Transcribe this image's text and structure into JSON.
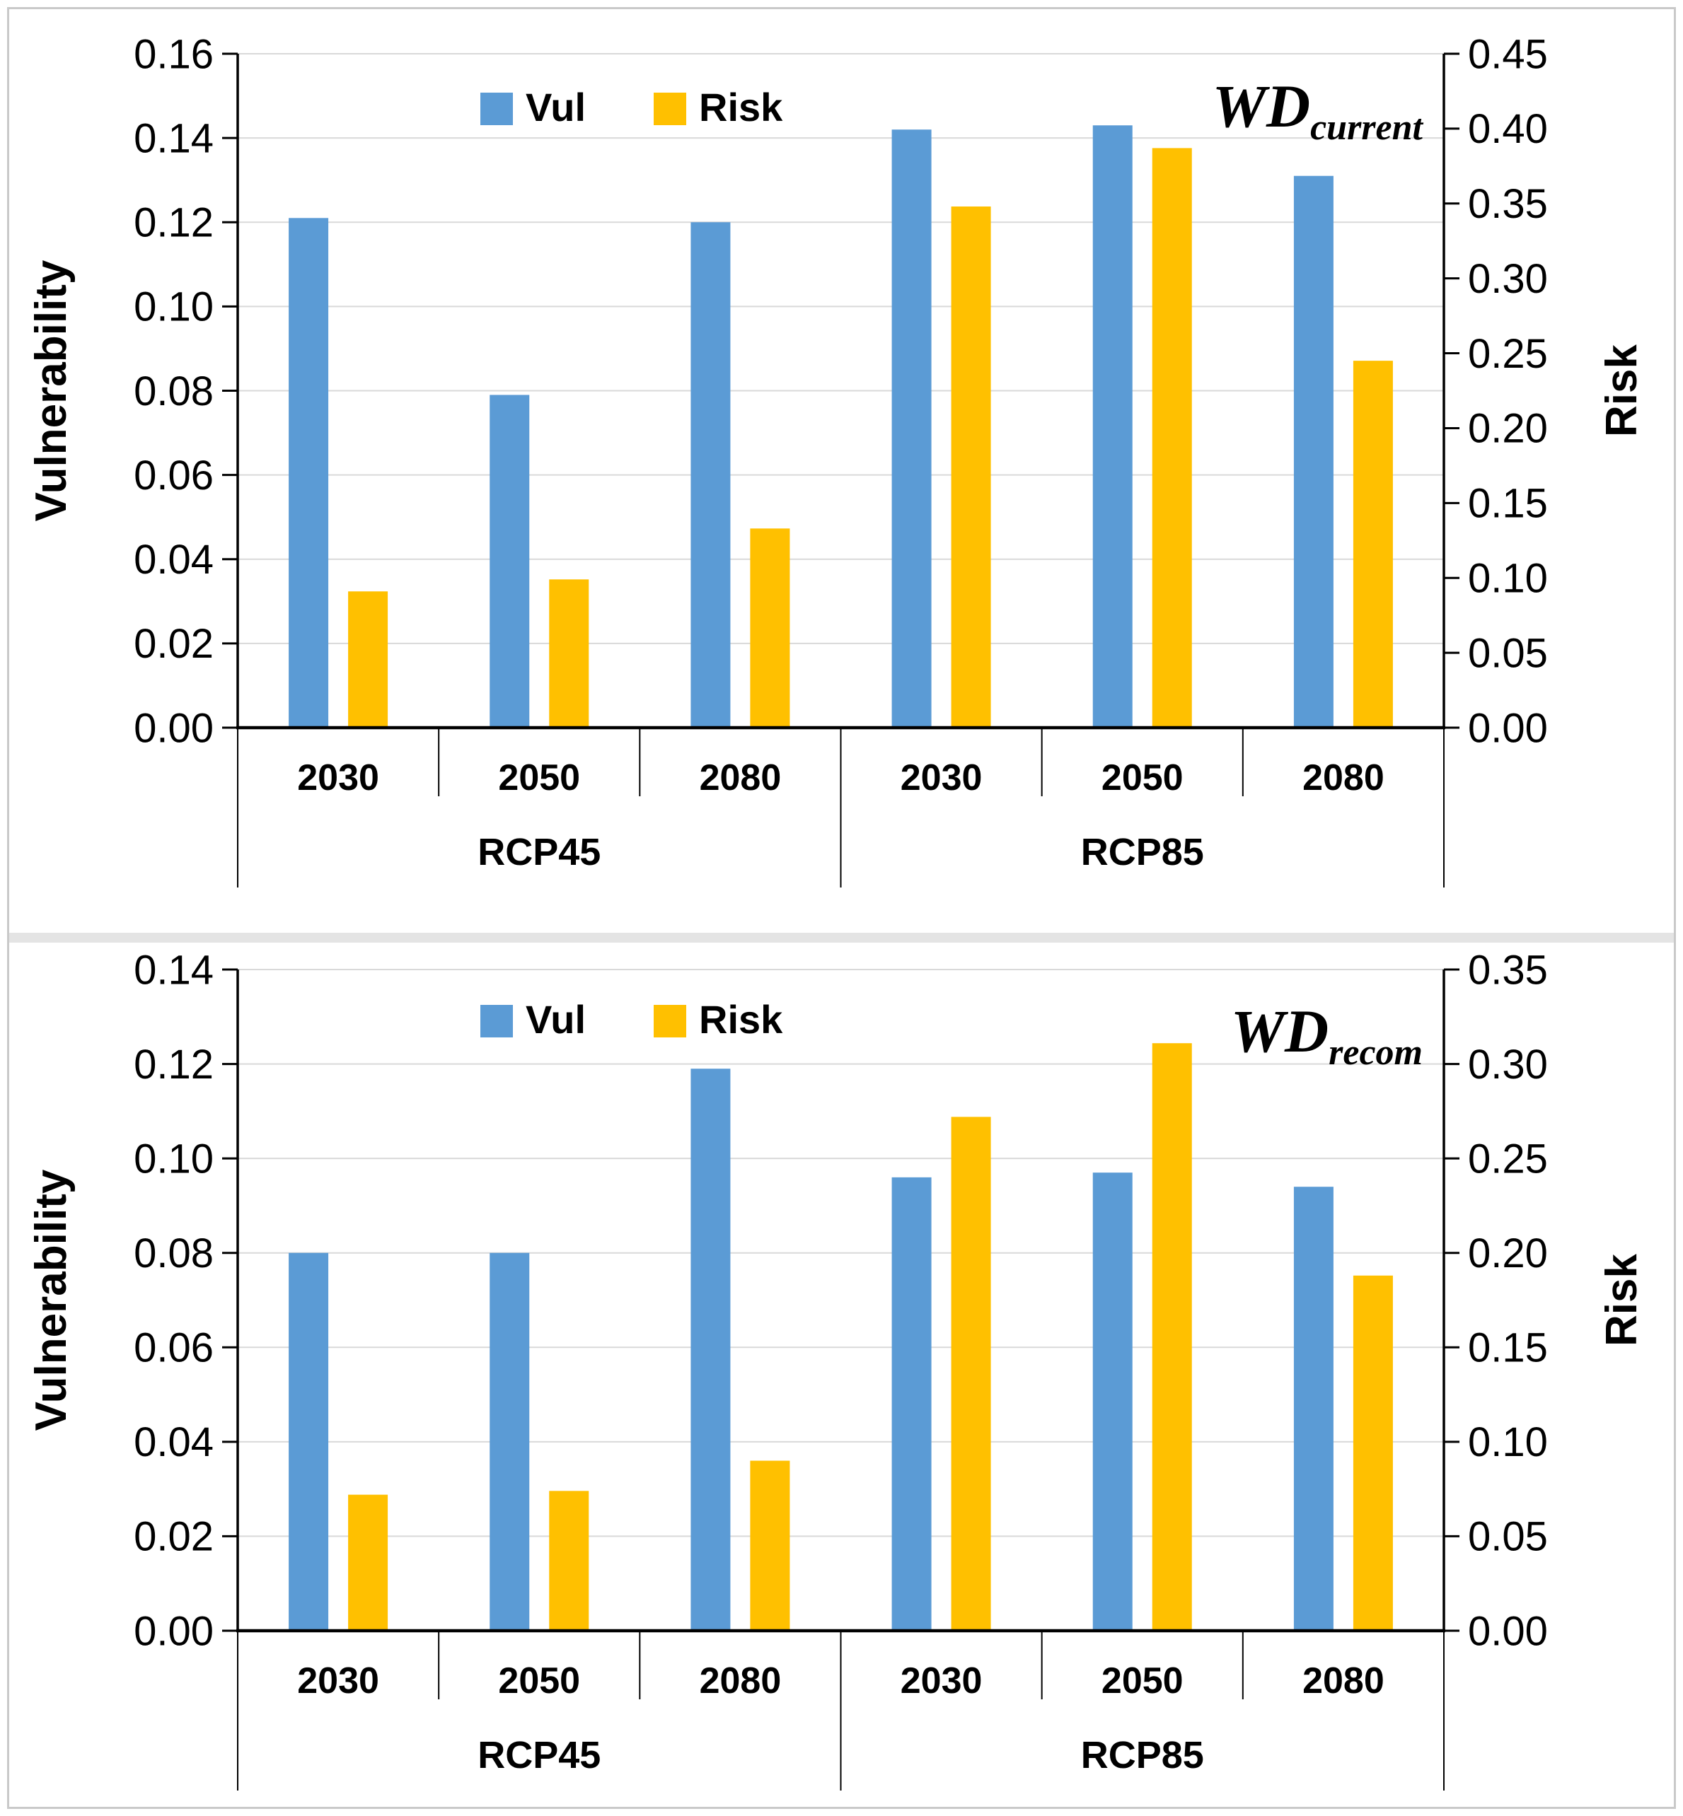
{
  "figure": {
    "panel_count": 2,
    "colors": {
      "vul_bar": "#5B9BD5",
      "risk_bar": "#FFC000",
      "gridline": "#D9D9D9",
      "axis_line": "#000000",
      "panel_border": "#C9C9C9",
      "divider": "#E4E4E4",
      "text": "#000000"
    }
  },
  "chart_data": [
    {
      "type": "bar",
      "title_main": "WD",
      "title_sub": "current",
      "legend": [
        "Vul",
        "Risk"
      ],
      "legend_position": "top-center",
      "grid": true,
      "categories": [
        "2030",
        "2050",
        "2080",
        "2030",
        "2050",
        "2080"
      ],
      "group_labels": [
        "RCP45",
        "RCP85"
      ],
      "left_axis": {
        "title": "Vulnerability",
        "min": 0.0,
        "max": 0.16,
        "step": 0.02
      },
      "right_axis": {
        "title": "Risk",
        "min": 0.0,
        "max": 0.45,
        "step": 0.05
      },
      "series": [
        {
          "name": "Vul",
          "axis": "left",
          "color": "#5B9BD5",
          "values": [
            0.121,
            0.079,
            0.12,
            0.142,
            0.143,
            0.131
          ]
        },
        {
          "name": "Risk",
          "axis": "right",
          "color": "#FFC000",
          "values": [
            0.091,
            0.099,
            0.133,
            0.348,
            0.387,
            0.245
          ]
        }
      ]
    },
    {
      "type": "bar",
      "title_main": "WD",
      "title_sub": "recom",
      "legend": [
        "Vul",
        "Risk"
      ],
      "legend_position": "top-center",
      "grid": true,
      "categories": [
        "2030",
        "2050",
        "2080",
        "2030",
        "2050",
        "2080"
      ],
      "group_labels": [
        "RCP45",
        "RCP85"
      ],
      "left_axis": {
        "title": "Vulnerability",
        "min": 0.0,
        "max": 0.14,
        "step": 0.02
      },
      "right_axis": {
        "title": "Risk",
        "min": 0.0,
        "max": 0.35,
        "step": 0.05
      },
      "series": [
        {
          "name": "Vul",
          "axis": "left",
          "color": "#5B9BD5",
          "values": [
            0.08,
            0.08,
            0.119,
            0.096,
            0.097,
            0.094
          ]
        },
        {
          "name": "Risk",
          "axis": "right",
          "color": "#FFC000",
          "values": [
            0.072,
            0.074,
            0.09,
            0.272,
            0.311,
            0.188
          ]
        }
      ]
    }
  ]
}
